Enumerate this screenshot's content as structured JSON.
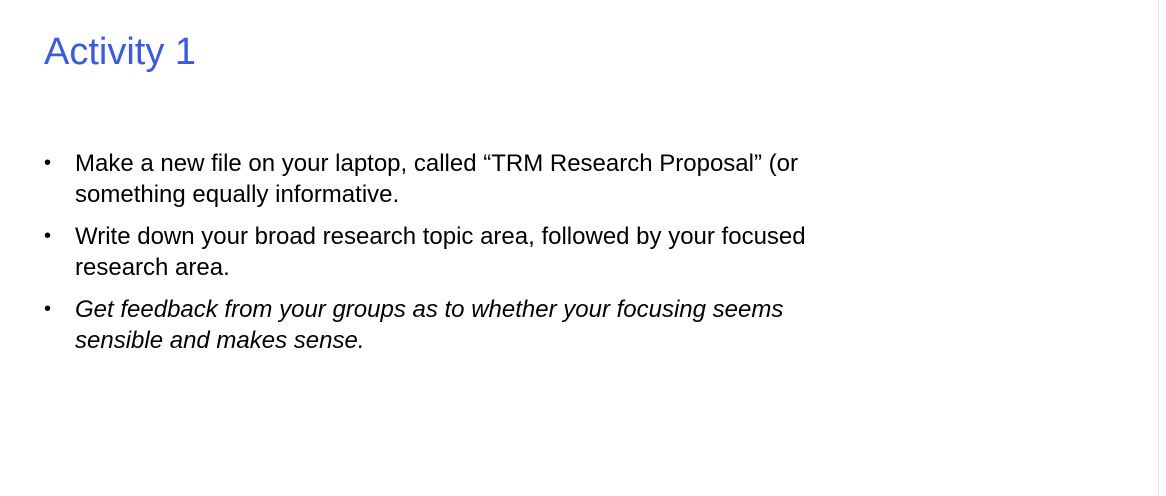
{
  "slide": {
    "title": "Activity 1",
    "bullets": [
      {
        "marker": "•",
        "text": "Make a new file on your laptop, called “TRM Research Proposal” (or something equally informative."
      },
      {
        "marker": "•",
        "text": "Write down your broad research topic area, followed by your focused research area."
      },
      {
        "marker": "•",
        "text": "Get feedback from your groups as to whether your focusing seems sensible and makes sense.",
        "italic": true
      }
    ]
  },
  "colors": {
    "title": "#3b5bdb",
    "body_text": "#000000",
    "background": "#ffffff"
  }
}
